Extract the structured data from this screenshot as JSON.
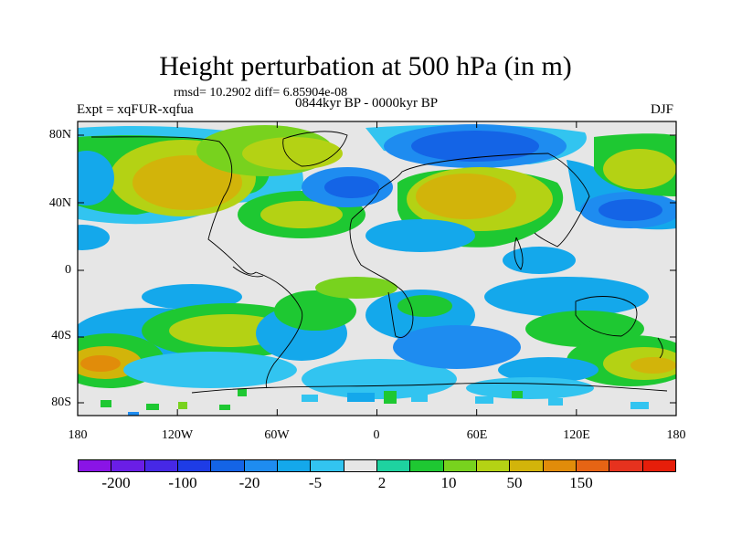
{
  "title": "Height perturbation at 500 hPa (in m)",
  "stats": "rmsd= 10.2902 diff= 6.85904e-08",
  "experiment": "Expt = xqFUR-xqfua",
  "period": "0844kyr BP - 0000kyr BP",
  "season": "DJF",
  "lat_ticks": [
    "80N",
    "40N",
    "0",
    "40S",
    "80S"
  ],
  "lon_ticks": [
    "180",
    "120W",
    "60W",
    "0",
    "60E",
    "120E",
    "180"
  ],
  "colorbar": {
    "colors": [
      "#8a14e6",
      "#6a1ee6",
      "#4628e6",
      "#1e3ce6",
      "#1464e6",
      "#1e8cf0",
      "#14a8eb",
      "#32c4f0",
      "#e6e6e6",
      "#1ed2a0",
      "#1ec832",
      "#78d21e",
      "#b4d214",
      "#d2b40a",
      "#e18c0a",
      "#e66414",
      "#e6321e",
      "#e61e0a"
    ],
    "labels": [
      "-200",
      "-100",
      "-20",
      "-5",
      "2",
      "10",
      "50",
      "150"
    ]
  }
}
